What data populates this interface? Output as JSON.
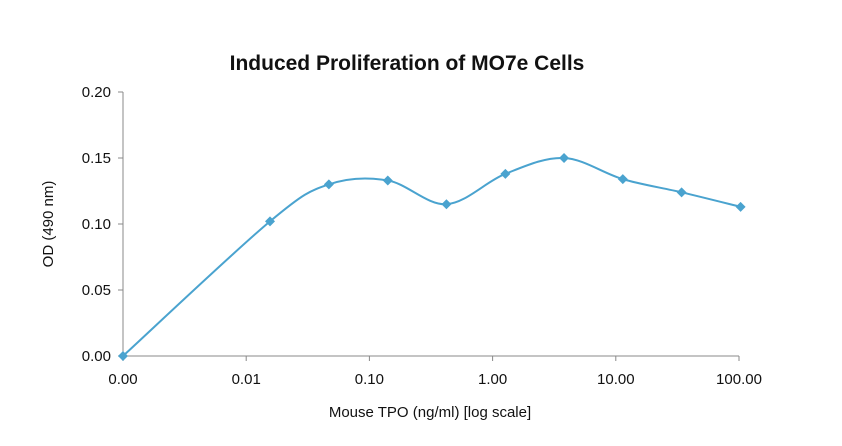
{
  "chart_data": {
    "type": "line",
    "title": "Induced Proliferation of MO7e Cells",
    "xlabel": "Mouse TPO (ng/ml) [log scale]",
    "ylabel": "OD (490 nm)",
    "x_scale": "log",
    "x_tick_labels": [
      "0.00",
      "0.01",
      "0.10",
      "1.00",
      "10.00",
      "100.00"
    ],
    "y_tick_labels": [
      "0.00",
      "0.05",
      "0.10",
      "0.15",
      "0.20"
    ],
    "ylim": [
      0,
      0.2
    ],
    "grid": false,
    "legend": "none",
    "smooth": true,
    "series": [
      {
        "color": "#4AA3CF",
        "marker": "diamond",
        "points": [
          {
            "x": 0.0,
            "y": 0.0
          },
          {
            "x": 0.0156,
            "y": 0.102
          },
          {
            "x": 0.0469,
            "y": 0.13
          },
          {
            "x": 0.141,
            "y": 0.133
          },
          {
            "x": 0.422,
            "y": 0.115
          },
          {
            "x": 1.27,
            "y": 0.138
          },
          {
            "x": 3.8,
            "y": 0.15
          },
          {
            "x": 11.4,
            "y": 0.134
          },
          {
            "x": 34.2,
            "y": 0.124
          },
          {
            "x": 103,
            "y": 0.113
          }
        ]
      }
    ]
  }
}
